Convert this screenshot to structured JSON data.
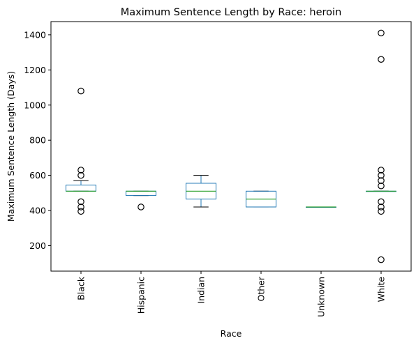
{
  "chart_data": {
    "type": "box",
    "title": "Maximum Sentence Length by Race: heroin",
    "xlabel": "Race",
    "ylabel": "Maximum Sentence Length (Days)",
    "ylim": [
      55,
      1475
    ],
    "yticks": [
      200,
      400,
      600,
      800,
      1000,
      1200,
      1400
    ],
    "grid": false,
    "colors": {
      "box": "#1f77b4",
      "median": "#2ca02c",
      "whisker": "#000000",
      "flier": "#000000"
    },
    "categories": [
      "Black",
      "Hispanic",
      "Indian",
      "Other",
      "Unknown",
      "White"
    ],
    "boxes": [
      {
        "category": "Black",
        "whislo": 510,
        "q1": 510,
        "med": 510,
        "q3": 545,
        "whishi": 570,
        "fliers": [
          395,
          420,
          450,
          600,
          630,
          1080
        ]
      },
      {
        "category": "Hispanic",
        "whislo": 485,
        "q1": 485,
        "med": 510,
        "q3": 510,
        "whishi": 510,
        "fliers": [
          420
        ]
      },
      {
        "category": "Indian",
        "whislo": 420,
        "q1": 465,
        "med": 510,
        "q3": 555,
        "whishi": 600,
        "fliers": []
      },
      {
        "category": "Other",
        "whislo": 420,
        "q1": 420,
        "med": 465,
        "q3": 510,
        "whishi": 510,
        "fliers": []
      },
      {
        "category": "Unknown",
        "whislo": 420,
        "q1": 420,
        "med": 420,
        "q3": 420,
        "whishi": 420,
        "fliers": []
      },
      {
        "category": "White",
        "whislo": 510,
        "q1": 510,
        "med": 510,
        "q3": 510,
        "whishi": 510,
        "fliers": [
          120,
          395,
          420,
          450,
          540,
          570,
          600,
          630,
          1260,
          1410
        ]
      }
    ]
  }
}
